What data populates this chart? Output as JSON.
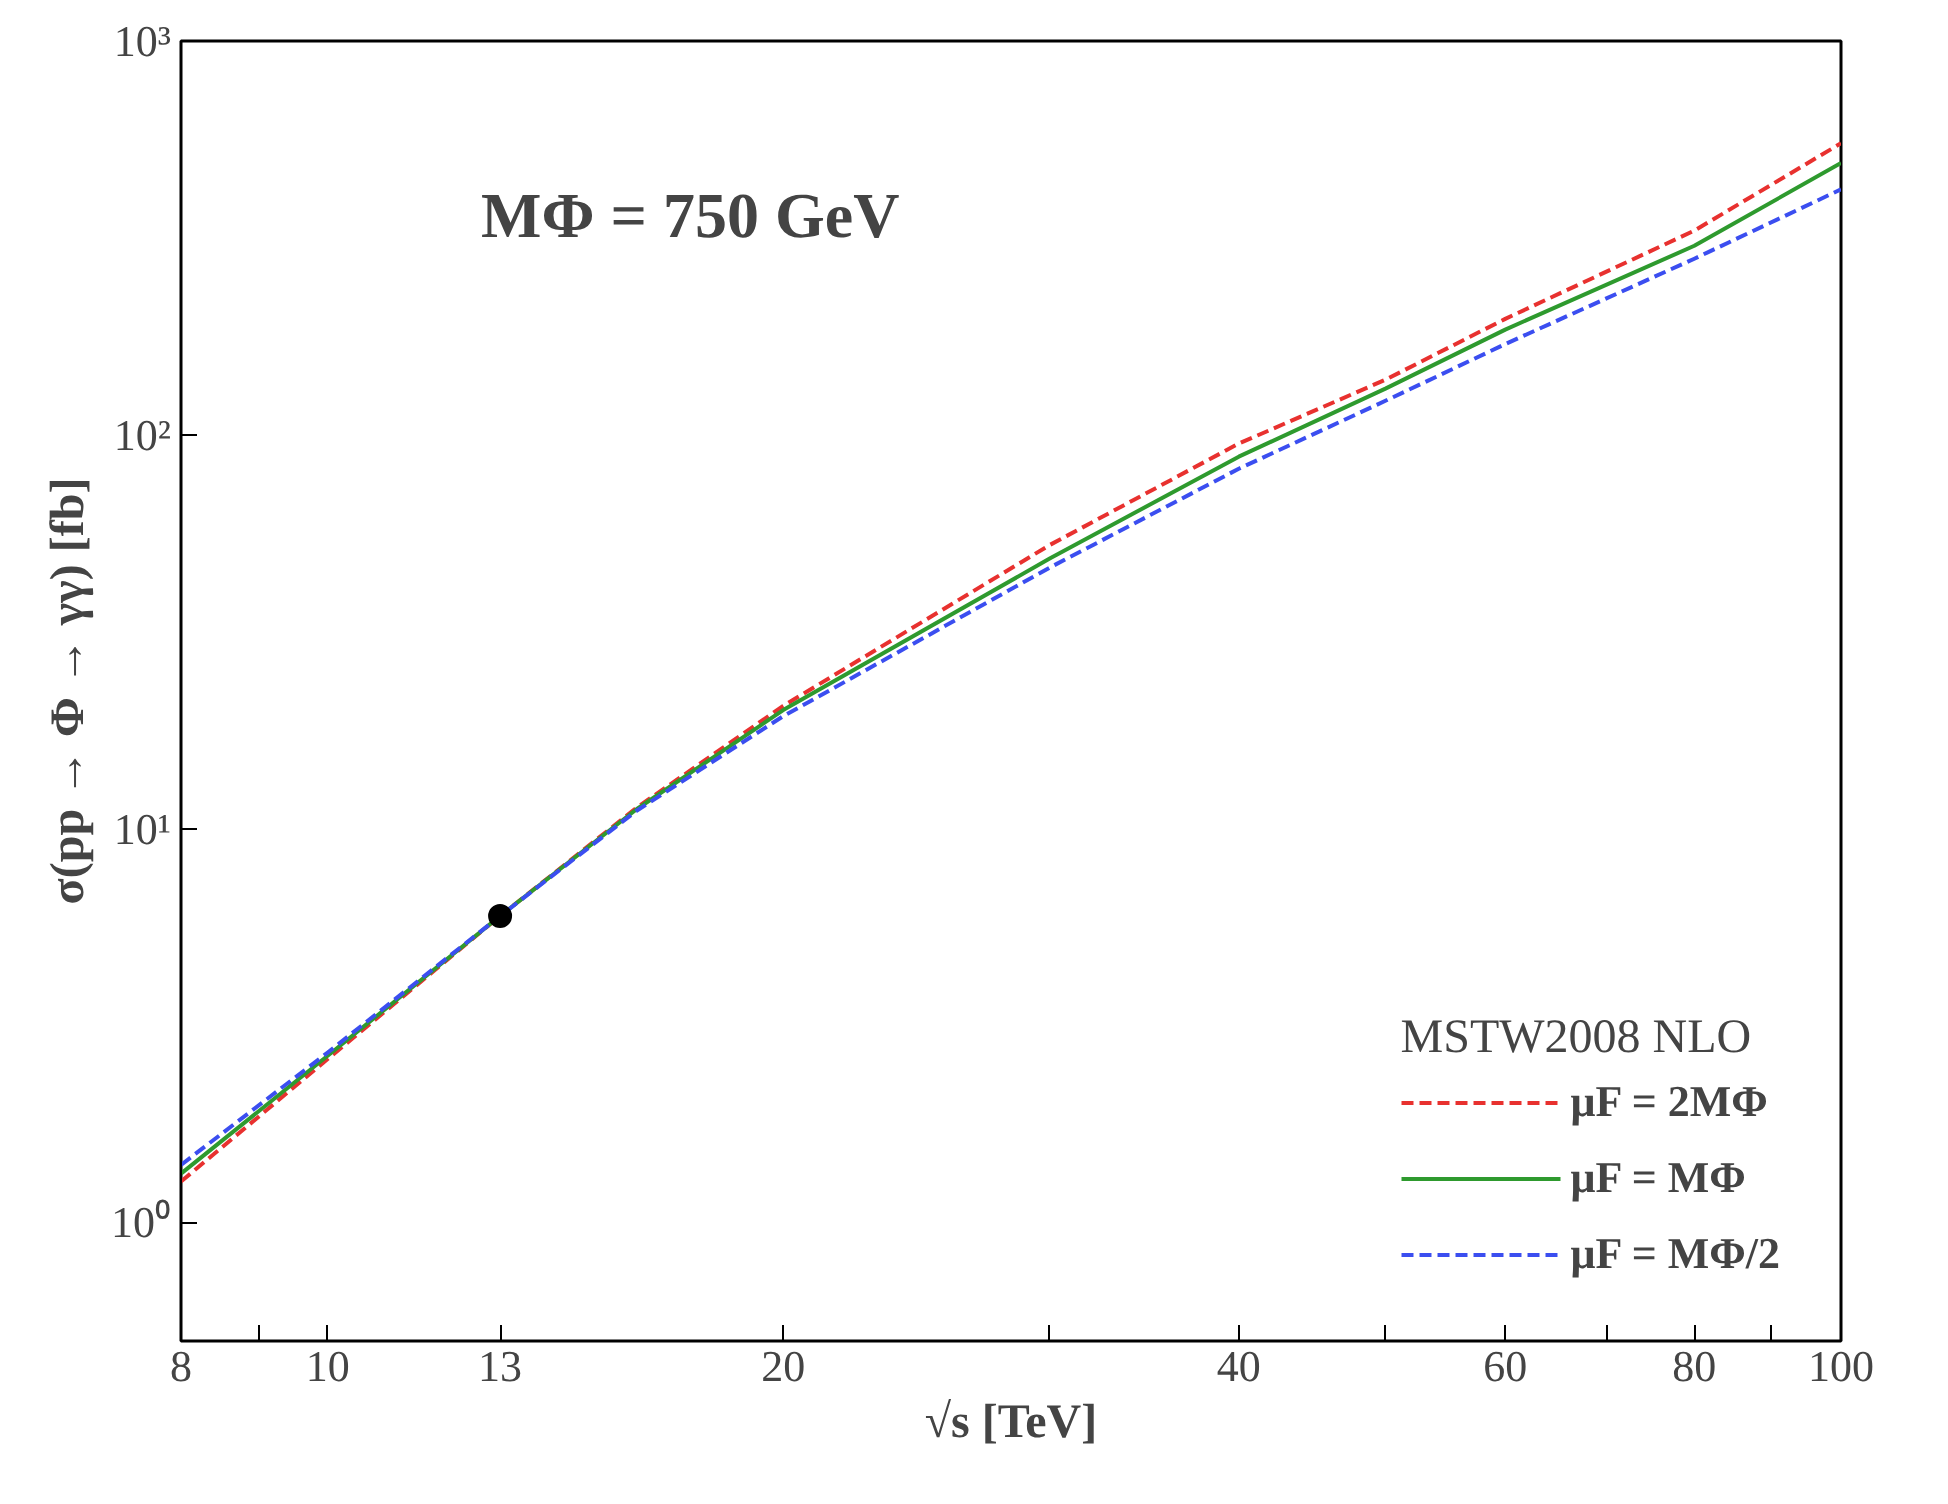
{
  "chart_data": {
    "type": "line",
    "xlabel": "√s [TeV]",
    "ylabel": "σ(pp → Φ → γγ) [fb]",
    "annotations": [
      "MΦ = 750 GeV"
    ],
    "legend_title": "MSTW2008 NLO",
    "log": "xy",
    "grid": false,
    "legend": "bottom right",
    "marker": "none",
    "xlim": [
      8,
      100
    ],
    "ylim": [
      0.5,
      1000
    ],
    "xticks": [
      8,
      {
        "value": 9,
        "label": null
      },
      10,
      13,
      20,
      {
        "value": 30,
        "label": null
      },
      40,
      {
        "value": 50,
        "label": null
      },
      60,
      {
        "value": 70,
        "label": null
      },
      80,
      {
        "value": 90,
        "label": null
      },
      100
    ],
    "yticks": [
      {
        "value": 1,
        "label": "10⁰"
      },
      {
        "value": 10,
        "label": "10¹"
      },
      {
        "value": 100,
        "label": "10²"
      },
      {
        "value": 1000,
        "label": "10³"
      }
    ],
    "x": [
      8,
      10,
      13,
      16,
      20,
      30,
      40,
      50,
      60,
      80,
      100
    ],
    "series": [
      {
        "name": "μF = 2MΦ",
        "color": "#e8312f",
        "line_style": "dashed",
        "values": [
          1.27,
          2.6,
          6,
          11.3,
          20.5,
          52.5,
          95,
          138,
          197,
          330,
          550
        ]
      },
      {
        "name": "μF = MΦ",
        "color": "#2e9a2e",
        "line_style": "solid",
        "values": [
          1.33,
          2.65,
          6,
          11.2,
          20,
          48.5,
          88,
          131,
          185,
          302,
          490
        ]
      },
      {
        "name": "μF = MΦ/2",
        "color": "#3b4ef0",
        "line_style": "dashed",
        "values": [
          1.4,
          2.7,
          6,
          11.1,
          19.3,
          46,
          82,
          122,
          170,
          280,
          420
        ]
      },
      {
        "type": "scatter",
        "marker": "circle",
        "color": "#000000",
        "x": [
          13
        ],
        "values": [
          6
        ]
      }
    ]
  }
}
